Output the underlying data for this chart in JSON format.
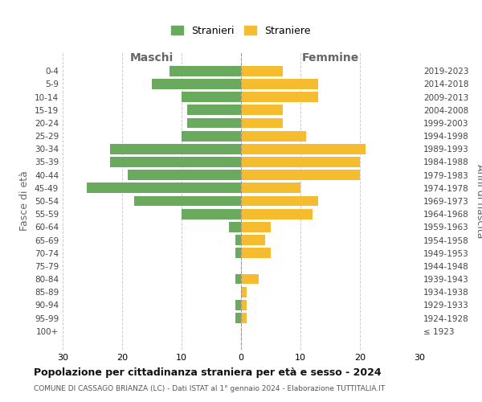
{
  "age_groups": [
    "100+",
    "95-99",
    "90-94",
    "85-89",
    "80-84",
    "75-79",
    "70-74",
    "65-69",
    "60-64",
    "55-59",
    "50-54",
    "45-49",
    "40-44",
    "35-39",
    "30-34",
    "25-29",
    "20-24",
    "15-19",
    "10-14",
    "5-9",
    "0-4"
  ],
  "birth_years": [
    "≤ 1923",
    "1924-1928",
    "1929-1933",
    "1934-1938",
    "1939-1943",
    "1944-1948",
    "1949-1953",
    "1954-1958",
    "1959-1963",
    "1964-1968",
    "1969-1973",
    "1974-1978",
    "1979-1983",
    "1984-1988",
    "1989-1993",
    "1994-1998",
    "1999-2003",
    "2004-2008",
    "2009-2013",
    "2014-2018",
    "2019-2023"
  ],
  "maschi": [
    0,
    1,
    1,
    0,
    1,
    0,
    1,
    1,
    2,
    10,
    18,
    26,
    19,
    22,
    22,
    10,
    9,
    9,
    10,
    15,
    12
  ],
  "femmine": [
    0,
    1,
    1,
    1,
    3,
    0,
    5,
    4,
    5,
    12,
    13,
    10,
    20,
    20,
    21,
    11,
    7,
    7,
    13,
    13,
    7
  ],
  "maschi_color": "#6aaa5e",
  "femmine_color": "#f5bc2f",
  "background_color": "#ffffff",
  "grid_color": "#cccccc",
  "title": "Popolazione per cittadinanza straniera per età e sesso - 2024",
  "subtitle": "COMUNE DI CASSAGO BRIANZA (LC) - Dati ISTAT al 1° gennaio 2024 - Elaborazione TUTTITALIA.IT",
  "xlabel_left": "Maschi",
  "xlabel_right": "Femmine",
  "ylabel_left": "Fasce di età",
  "ylabel_right": "Anni di nascita",
  "legend_maschi": "Stranieri",
  "legend_femmine": "Straniere",
  "xlim": 30,
  "bar_height": 0.8
}
